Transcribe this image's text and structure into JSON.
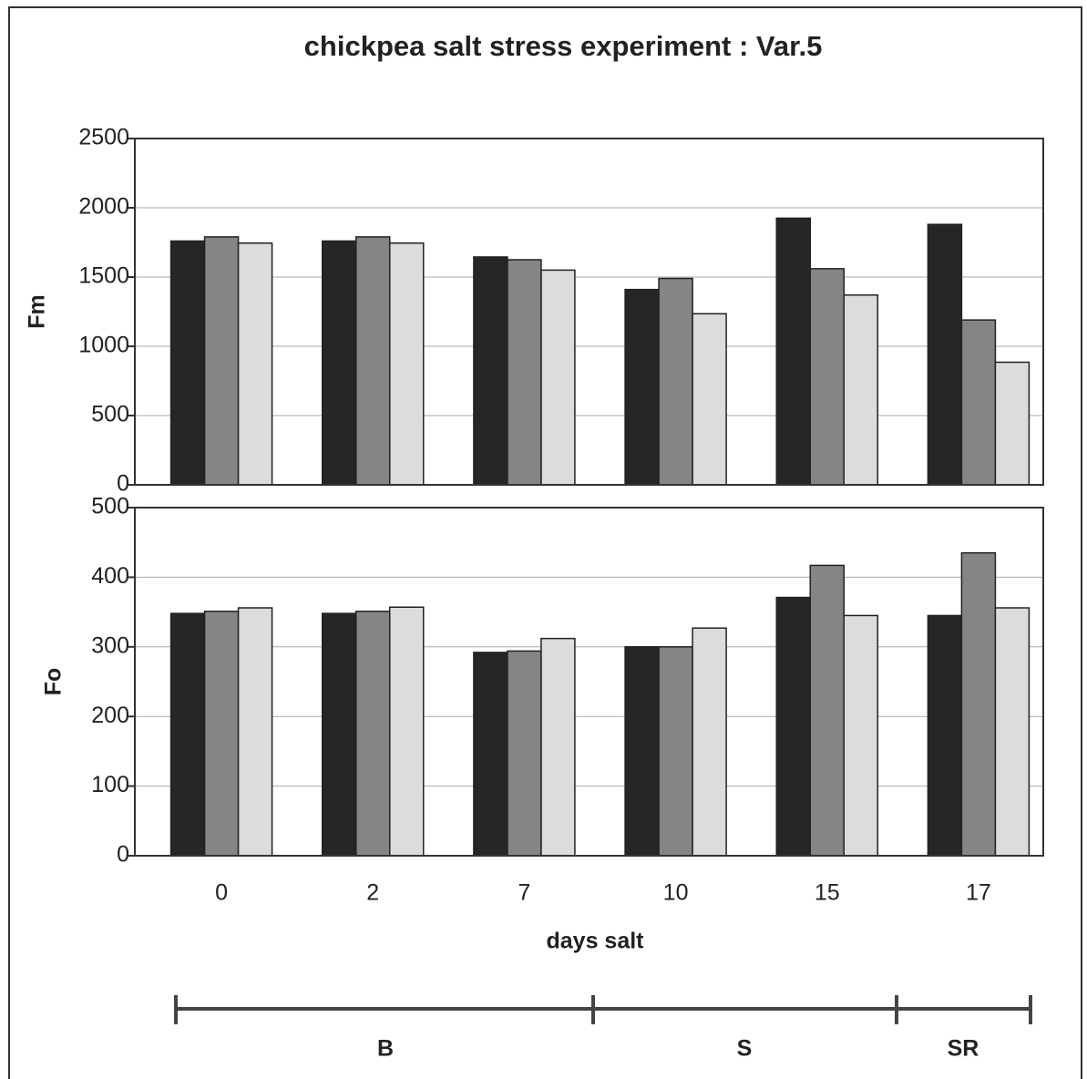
{
  "title": "chickpea  salt stress experiment : Var.5",
  "xlabel": "days  salt",
  "annotations": [
    "B",
    "S",
    "SR"
  ],
  "chart_data": [
    {
      "type": "bar",
      "ylabel": "Fm",
      "ylim": [
        0,
        2500
      ],
      "yticks": [
        0,
        500,
        1000,
        1500,
        2000,
        2500
      ],
      "grid": true,
      "series": [
        {
          "color": "#262626",
          "values": [
            1760,
            1760,
            1645,
            1410,
            1925,
            1880
          ]
        },
        {
          "color": "#858585",
          "values": [
            1790,
            1790,
            1625,
            1490,
            1560,
            1190
          ]
        },
        {
          "color": "#dcdcdc",
          "values": [
            1745,
            1745,
            1550,
            1235,
            1370,
            885
          ]
        }
      ]
    },
    {
      "type": "bar",
      "ylabel": "Fo",
      "ylim": [
        0,
        500
      ],
      "yticks": [
        0,
        100,
        200,
        300,
        400,
        500
      ],
      "grid": true,
      "categories": [
        "0",
        "2",
        "7",
        "10",
        "15",
        "17"
      ],
      "series": [
        {
          "color": "#262626",
          "values": [
            348,
            348,
            292,
            300,
            371,
            345
          ]
        },
        {
          "color": "#858585",
          "values": [
            351,
            351,
            294,
            300,
            417,
            435
          ]
        },
        {
          "color": "#dcdcdc",
          "values": [
            356,
            357,
            312,
            327,
            345,
            356
          ]
        }
      ]
    }
  ]
}
